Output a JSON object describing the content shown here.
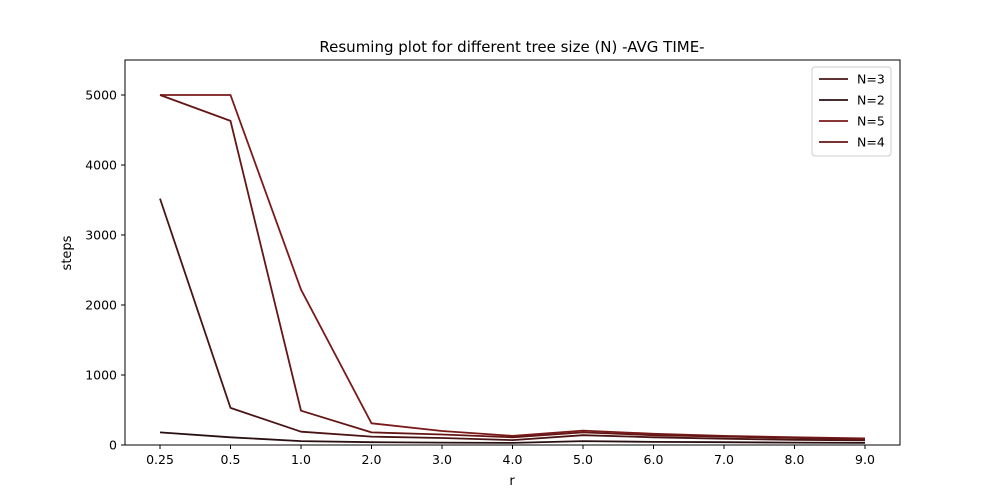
{
  "chart_data": {
    "type": "line",
    "title": "Resuming plot for different tree size (N) -AVG TIME-",
    "xlabel": "r",
    "ylabel": "steps",
    "categories": [
      "0.25",
      "0.5",
      "1.0",
      "2.0",
      "3.0",
      "4.0",
      "5.0",
      "6.0",
      "7.0",
      "8.0",
      "9.0"
    ],
    "yticks": [
      0,
      1000,
      2000,
      3000,
      4000,
      5000
    ],
    "ytick_labels": [
      "0",
      "1000",
      "2000",
      "3000",
      "4000",
      "5000"
    ],
    "ylim": [
      0,
      5500
    ],
    "grid": false,
    "legend_position": "top-right",
    "series": [
      {
        "name": "N=3",
        "color": "#4a1414",
        "values": [
          3520,
          530,
          190,
          120,
          100,
          70,
          140,
          110,
          90,
          75,
          65
        ]
      },
      {
        "name": "N=2",
        "color": "#2a0f12",
        "values": [
          180,
          110,
          55,
          40,
          35,
          30,
          55,
          45,
          40,
          35,
          30
        ]
      },
      {
        "name": "N=5",
        "color": "#7a1a1a",
        "values": [
          5000,
          5000,
          2220,
          310,
          200,
          130,
          205,
          160,
          130,
          110,
          95
        ]
      },
      {
        "name": "N=4",
        "color": "#661515",
        "values": [
          5000,
          4630,
          490,
          180,
          150,
          110,
          180,
          140,
          120,
          100,
          80
        ]
      }
    ]
  }
}
